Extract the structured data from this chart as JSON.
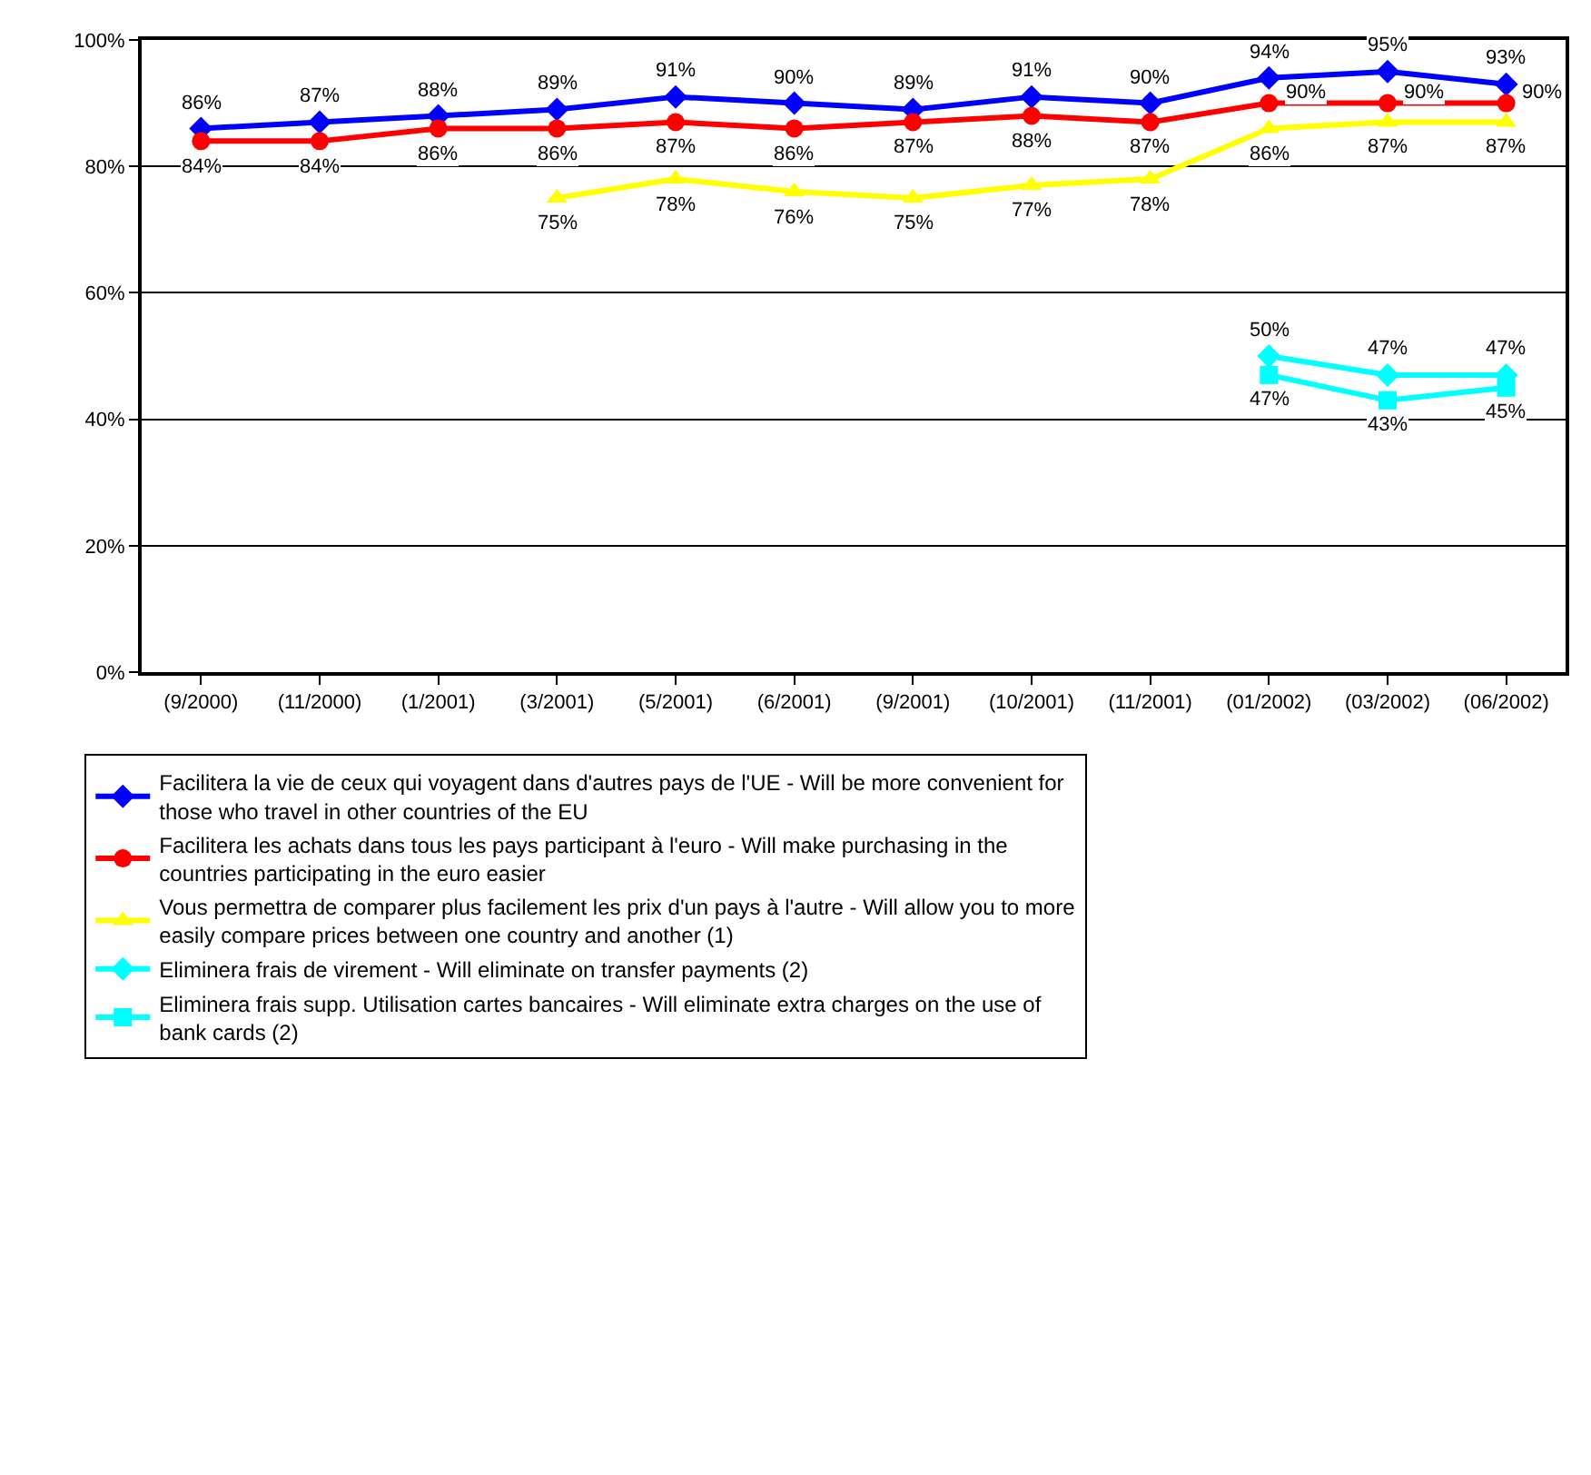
{
  "chart_data": {
    "type": "line",
    "categories": [
      "(9/2000)",
      "(11/2000)",
      "(1/2001)",
      "(3/2001)",
      "(5/2001)",
      "(6/2001)",
      "(9/2001)",
      "(10/2001)",
      "(11/2001)",
      "(01/2002)",
      "(03/2002)",
      "(06/2002)"
    ],
    "ylim": [
      0,
      100
    ],
    "yticks": [
      {
        "value": 0,
        "label": "0%"
      },
      {
        "value": 20,
        "label": "20%"
      },
      {
        "value": 40,
        "label": "40%"
      },
      {
        "value": 60,
        "label": "60%"
      },
      {
        "value": 80,
        "label": "80%"
      },
      {
        "value": 100,
        "label": "100%"
      }
    ],
    "grid": "y",
    "legend": "bottom",
    "series": [
      {
        "name": "Facilitera la vie de ceux qui voyagent dans d'autres pays de l'UE - Will be more convenient for those who travel in other countries of the EU",
        "color": "#0000ff",
        "marker": "diamond",
        "values": [
          86,
          87,
          88,
          89,
          91,
          90,
          89,
          91,
          90,
          94,
          95,
          93
        ],
        "value_labels": [
          "86%",
          "87%",
          "88%",
          "89%",
          "91%",
          "90%",
          "89%",
          "91%",
          "90%",
          "94%",
          "95%",
          "93%"
        ]
      },
      {
        "name": "Facilitera les achats dans tous les pays participant à l'euro - Will make purchasing in the countries participating in the euro easier",
        "color": "#ff0000",
        "marker": "circle",
        "values": [
          84,
          84,
          86,
          86,
          87,
          86,
          87,
          88,
          87,
          90,
          90,
          90
        ],
        "value_labels": [
          "84%",
          "84%",
          "86%",
          "86%",
          "87%",
          "86%",
          "87%",
          "88%",
          "87%",
          "90%",
          "90%",
          "90%"
        ]
      },
      {
        "name": "Vous permettra de comparer plus facilement les prix d'un pays à l'autre - Will allow you to more easily compare prices between one country and another (1)",
        "color": "#ffff00",
        "marker": "triangle",
        "values": [
          null,
          null,
          null,
          75,
          78,
          76,
          75,
          77,
          78,
          86,
          87,
          87
        ],
        "value_labels": [
          null,
          null,
          null,
          "75%",
          "78%",
          "76%",
          "75%",
          "77%",
          "78%",
          "86%",
          "87%",
          "87%"
        ]
      },
      {
        "name": "Eliminera frais de virement - Will eliminate on transfer payments (2)",
        "color": "#00ffff",
        "marker": "diamond",
        "values": [
          null,
          null,
          null,
          null,
          null,
          null,
          null,
          null,
          null,
          50,
          47,
          47
        ],
        "value_labels": [
          null,
          null,
          null,
          null,
          null,
          null,
          null,
          null,
          null,
          "50%",
          "47%",
          "47%"
        ]
      },
      {
        "name": "Eliminera frais supp. Utilisation cartes bancaires - Will eliminate extra charges on the use of bank cards (2)",
        "color": "#00ffff",
        "marker": "square",
        "values": [
          null,
          null,
          null,
          null,
          null,
          null,
          null,
          null,
          null,
          47,
          43,
          45
        ],
        "value_labels": [
          null,
          null,
          null,
          null,
          null,
          null,
          null,
          null,
          null,
          "47%",
          "43%",
          "45%"
        ]
      }
    ]
  }
}
